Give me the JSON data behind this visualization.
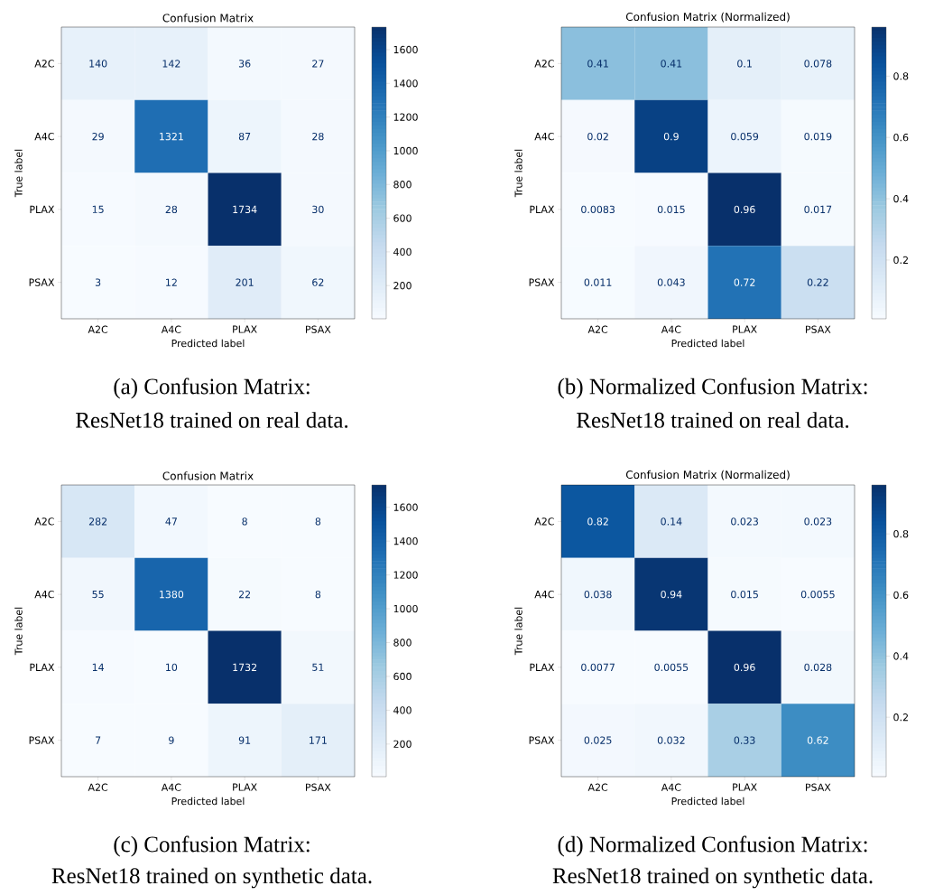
{
  "chart_data": [
    {
      "type": "heatmap",
      "title": "Confusion Matrix",
      "xlabel": "Predicted label",
      "ylabel": "True label",
      "categories": [
        "A2C",
        "A4C",
        "PLAX",
        "PSAX"
      ],
      "y_categories": [
        "A2C",
        "A4C",
        "PLAX",
        "PSAX"
      ],
      "cells": [
        [
          140,
          142,
          36,
          27
        ],
        [
          29,
          1321,
          87,
          28
        ],
        [
          15,
          28,
          1734,
          30
        ],
        [
          3,
          12,
          201,
          62
        ]
      ],
      "clim": [
        3,
        1734
      ],
      "cticks": [
        200,
        400,
        600,
        800,
        1000,
        1200,
        1400,
        1600
      ],
      "data_labels": true,
      "annotations": [
        "(a) Confusion Matrix:",
        "ResNet18 trained on real data."
      ]
    },
    {
      "type": "heatmap",
      "title": "Confusion Matrix (Normalized)",
      "xlabel": "Predicted label",
      "ylabel": "True label",
      "categories": [
        "A2C",
        "A4C",
        "PLAX",
        "PSAX"
      ],
      "y_categories": [
        "A2C",
        "A4C",
        "PLAX",
        "PSAX"
      ],
      "cells": [
        [
          0.41,
          0.41,
          0.1,
          0.078
        ],
        [
          0.02,
          0.9,
          0.059,
          0.019
        ],
        [
          0.0083,
          0.015,
          0.96,
          0.017
        ],
        [
          0.011,
          0.043,
          0.72,
          0.22
        ]
      ],
      "clim": [
        0.0083,
        0.96
      ],
      "cticks": [
        0.2,
        0.4,
        0.6,
        0.8
      ],
      "data_labels": true,
      "annotations": [
        "(b) Normalized Confusion Matrix:",
        "ResNet18 trained on real data."
      ]
    },
    {
      "type": "heatmap",
      "title": "Confusion Matrix",
      "xlabel": "Predicted label",
      "ylabel": "True label",
      "categories": [
        "A2C",
        "A4C",
        "PLAX",
        "PSAX"
      ],
      "y_categories": [
        "A2C",
        "A4C",
        "PLAX",
        "PSAX"
      ],
      "cells": [
        [
          282,
          47,
          8,
          8
        ],
        [
          55,
          1380,
          22,
          8
        ],
        [
          14,
          10,
          1732,
          51
        ],
        [
          7,
          9,
          91,
          171
        ]
      ],
      "clim": [
        7,
        1732
      ],
      "cticks": [
        200,
        400,
        600,
        800,
        1000,
        1200,
        1400,
        1600
      ],
      "data_labels": true,
      "annotations": [
        "(c) Confusion Matrix:",
        "ResNet18 trained on synthetic data."
      ]
    },
    {
      "type": "heatmap",
      "title": "Confusion Matrix (Normalized)",
      "xlabel": "Predicted label",
      "ylabel": "True label",
      "categories": [
        "A2C",
        "A4C",
        "PLAX",
        "PSAX"
      ],
      "y_categories": [
        "A2C",
        "A4C",
        "PLAX",
        "PSAX"
      ],
      "cells": [
        [
          0.82,
          0.14,
          0.023,
          0.023
        ],
        [
          0.038,
          0.94,
          0.015,
          0.0055
        ],
        [
          0.0077,
          0.0055,
          0.96,
          0.028
        ],
        [
          0.025,
          0.032,
          0.33,
          0.62
        ]
      ],
      "clim": [
        0.0055,
        0.96
      ],
      "cticks": [
        0.2,
        0.4,
        0.6,
        0.8
      ],
      "data_labels": true,
      "annotations": [
        "(d) Normalized Confusion Matrix:",
        "ResNet18 trained on synthetic data."
      ]
    }
  ]
}
